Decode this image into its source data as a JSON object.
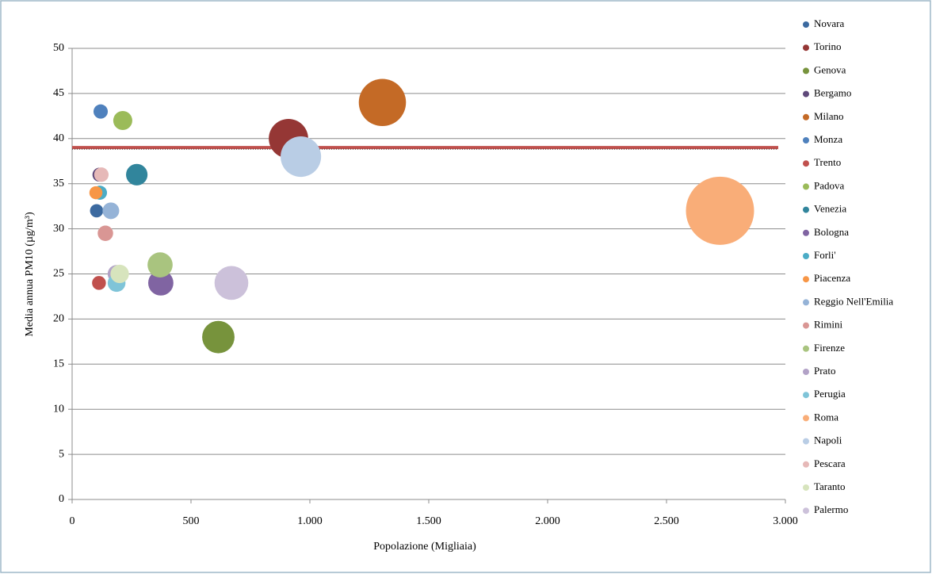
{
  "chart_data": {
    "type": "bubble",
    "x_label": "Popolazione (Migliaia)",
    "y_label": "Media annua PM10 (µg/m³)",
    "xlim": [
      0,
      3000
    ],
    "xticks": [
      0,
      500,
      {
        "value": 1000,
        "label": "1.000"
      },
      {
        "value": 1500,
        "label": "1.500"
      },
      {
        "value": 2000,
        "label": "2.000"
      },
      {
        "value": 2500,
        "label": "2.500"
      },
      {
        "value": 3000,
        "label": "3.000"
      }
    ],
    "ylim": [
      0,
      50
    ],
    "yticks": [
      0,
      5,
      10,
      15,
      20,
      25,
      30,
      35,
      40,
      45,
      50
    ],
    "grid": true,
    "legend": "right",
    "reference_line": {
      "value": 39,
      "color": "#c0504d"
    },
    "series": [
      {
        "name": "Novara",
        "color": "#3c6aa0",
        "x": [
          103
        ],
        "values": [
          32
        ],
        "sizes": [
          103
        ]
      },
      {
        "name": "Torino",
        "color": "#953735",
        "x": [
          910
        ],
        "values": [
          40
        ],
        "sizes": [
          910
        ]
      },
      {
        "name": "Genova",
        "color": "#77933c",
        "x": [
          615
        ],
        "values": [
          18
        ],
        "sizes": [
          615
        ]
      },
      {
        "name": "Bergamo",
        "color": "#5f497a",
        "x": [
          115
        ],
        "values": [
          36
        ],
        "sizes": [
          115
        ]
      },
      {
        "name": "Milano",
        "color": "#c46a26",
        "x": [
          1305
        ],
        "values": [
          44
        ],
        "sizes": [
          1305
        ]
      },
      {
        "name": "Monza",
        "color": "#4f81bd",
        "x": [
          120
        ],
        "values": [
          43
        ],
        "sizes": [
          120
        ]
      },
      {
        "name": "Trento",
        "color": "#c0504d",
        "x": [
          113
        ],
        "values": [
          24
        ],
        "sizes": [
          113
        ]
      },
      {
        "name": "Padova",
        "color": "#9bbb59",
        "x": [
          213
        ],
        "values": [
          42
        ],
        "sizes": [
          213
        ]
      },
      {
        "name": "Venezia",
        "color": "#31859c",
        "x": [
          272
        ],
        "values": [
          36
        ],
        "sizes": [
          272
        ]
      },
      {
        "name": "Bologna",
        "color": "#8064a2",
        "x": [
          373
        ],
        "values": [
          24
        ],
        "sizes": [
          373
        ]
      },
      {
        "name": "Forli'",
        "color": "#4bacc6",
        "x": [
          117
        ],
        "values": [
          34
        ],
        "sizes": [
          117
        ]
      },
      {
        "name": "Piacenza",
        "color": "#f79646",
        "x": [
          100
        ],
        "values": [
          34
        ],
        "sizes": [
          100
        ]
      },
      {
        "name": "Reggio Nell'Emilia",
        "color": "#95b3d7",
        "x": [
          163
        ],
        "values": [
          32
        ],
        "sizes": [
          163
        ]
      },
      {
        "name": "Rimini",
        "color": "#d99694",
        "x": [
          140
        ],
        "values": [
          29.5
        ],
        "sizes": [
          140
        ]
      },
      {
        "name": "Firenze",
        "color": "#a9c47f",
        "x": [
          370
        ],
        "values": [
          26
        ],
        "sizes": [
          370
        ]
      },
      {
        "name": "Prato",
        "color": "#b2a2c7",
        "x": [
          187
        ],
        "values": [
          25
        ],
        "sizes": [
          187
        ]
      },
      {
        "name": "Perugia",
        "color": "#7fc4d8",
        "x": [
          187
        ],
        "values": [
          24
        ],
        "sizes": [
          187
        ]
      },
      {
        "name": "Roma",
        "color": "#f9ad78",
        "x": [
          2725
        ],
        "values": [
          32
        ],
        "sizes": [
          2725
        ]
      },
      {
        "name": "Napoli",
        "color": "#b9cde5",
        "x": [
          962
        ],
        "values": [
          38
        ],
        "sizes": [
          962
        ]
      },
      {
        "name": "Pescara",
        "color": "#e6b9b8",
        "x": [
          123
        ],
        "values": [
          36
        ],
        "sizes": [
          123
        ]
      },
      {
        "name": "Taranto",
        "color": "#d7e4bd",
        "x": [
          200
        ],
        "values": [
          25
        ],
        "sizes": [
          200
        ]
      },
      {
        "name": "Palermo",
        "color": "#ccc1da",
        "x": [
          670
        ],
        "values": [
          24
        ],
        "sizes": [
          670
        ]
      }
    ]
  }
}
